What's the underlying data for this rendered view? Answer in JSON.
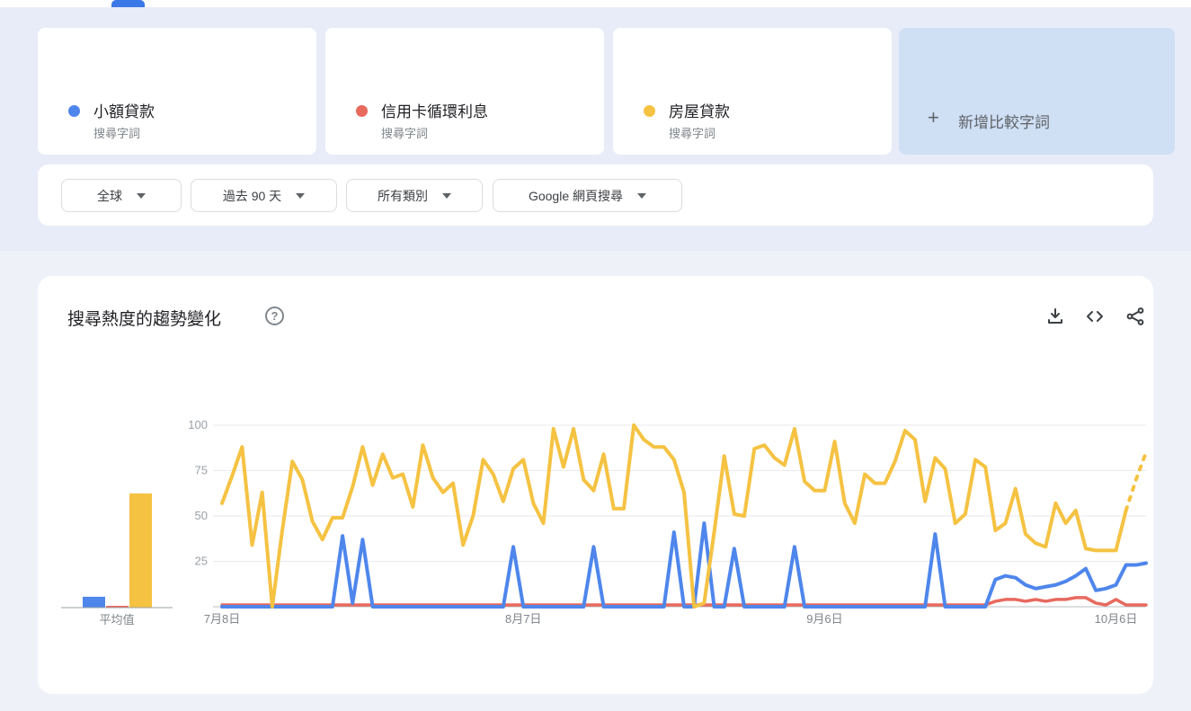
{
  "tabs": {
    "note": "active tab underline visible at top edge"
  },
  "terms": [
    {
      "label": "小額貸款",
      "sublabel": "搜尋字詞",
      "color": "#4e86ec"
    },
    {
      "label": "信用卡循環利息",
      "sublabel": "搜尋字詞",
      "color": "#e8695e"
    },
    {
      "label": "房屋貸款",
      "sublabel": "搜尋字詞",
      "color": "#f5c242"
    }
  ],
  "add_term": {
    "label": "新增比較字詞",
    "plus_glyph": "+"
  },
  "filters": [
    {
      "label": "全球"
    },
    {
      "label": "過去 90 天"
    },
    {
      "label": "所有類別"
    },
    {
      "label": "Google 網頁搜尋"
    }
  ],
  "trend_section": {
    "title": "搜尋熱度的趨勢變化",
    "help_glyph": "?",
    "icons": [
      "download-icon",
      "embed-icon",
      "share-icon"
    ]
  },
  "chart_data": {
    "type": "line",
    "title": "搜尋熱度的趨勢變化",
    "x_tick_labels": [
      "7月8日",
      "8月7日",
      "9月6日",
      "10月6日"
    ],
    "x_tick_days": [
      0,
      30,
      60,
      89
    ],
    "y_ticks": [
      100,
      75,
      50,
      25
    ],
    "ylim": [
      0,
      100
    ],
    "n_points": 93,
    "dotted_from_index": 90,
    "grid": true,
    "avg_label": "平均值",
    "series": [
      {
        "name": "小額貸款",
        "color": "#4e86ec",
        "avg": 6,
        "values": [
          0,
          0,
          0,
          0,
          0,
          0,
          0,
          0,
          0,
          0,
          0,
          0,
          39,
          2,
          37,
          0,
          0,
          0,
          0,
          0,
          0,
          0,
          0,
          0,
          0,
          0,
          0,
          0,
          0,
          33,
          0,
          0,
          0,
          0,
          0,
          0,
          0,
          33,
          0,
          0,
          0,
          0,
          0,
          0,
          0,
          41,
          0,
          0,
          46,
          0,
          0,
          32,
          0,
          0,
          0,
          0,
          0,
          33,
          0,
          0,
          0,
          0,
          0,
          0,
          0,
          0,
          0,
          0,
          0,
          0,
          0,
          40,
          0,
          0,
          0,
          0,
          0,
          15,
          17,
          16,
          12,
          10,
          11,
          12,
          14,
          17,
          21,
          9,
          10,
          12,
          23,
          23,
          24
        ]
      },
      {
        "name": "信用卡循環利息",
        "color": "#e8695e",
        "avg": 1,
        "values": [
          1,
          1,
          1,
          1,
          1,
          1,
          1,
          1,
          1,
          1,
          1,
          1,
          1,
          1,
          1,
          1,
          1,
          1,
          1,
          1,
          1,
          1,
          1,
          1,
          1,
          1,
          1,
          1,
          1,
          1,
          1,
          1,
          1,
          1,
          1,
          1,
          1,
          1,
          1,
          1,
          1,
          1,
          1,
          1,
          1,
          1,
          1,
          1,
          1,
          1,
          1,
          1,
          1,
          1,
          1,
          1,
          1,
          1,
          1,
          1,
          1,
          1,
          1,
          1,
          1,
          1,
          1,
          1,
          1,
          1,
          1,
          1,
          1,
          1,
          1,
          1,
          1,
          3,
          4,
          4,
          3,
          4,
          3,
          4,
          4,
          5,
          5,
          2,
          1,
          4,
          1,
          1,
          1
        ]
      },
      {
        "name": "房屋貸款",
        "color": "#f5c242",
        "avg": 63,
        "values": [
          57,
          72,
          88,
          34,
          63,
          0,
          42,
          80,
          70,
          47,
          37,
          49,
          49,
          66,
          88,
          67,
          84,
          71,
          73,
          55,
          89,
          71,
          63,
          68,
          34,
          50,
          81,
          73,
          58,
          76,
          81,
          57,
          46,
          98,
          77,
          98,
          70,
          64,
          84,
          54,
          54,
          100,
          92,
          88,
          88,
          81,
          63,
          0,
          2,
          41,
          83,
          51,
          50,
          87,
          89,
          82,
          78,
          98,
          69,
          64,
          64,
          91,
          57,
          46,
          73,
          68,
          68,
          80,
          97,
          92,
          58,
          82,
          76,
          46,
          51,
          81,
          77,
          42,
          46,
          65,
          40,
          35,
          33,
          57,
          46,
          53,
          32,
          31,
          31,
          31,
          53,
          70,
          85
        ]
      }
    ]
  }
}
